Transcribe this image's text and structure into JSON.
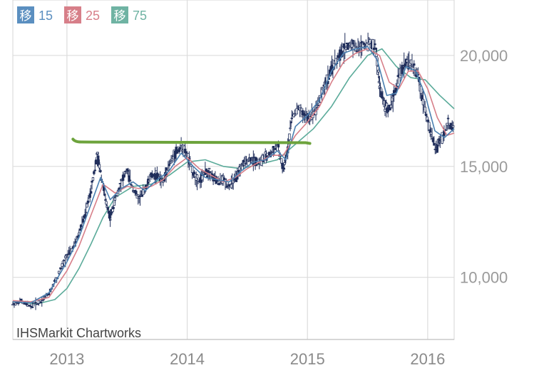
{
  "chart_data": {
    "type": "candlestick",
    "watermark": "IHSMarkit Chartworks",
    "x_ticks": [
      "2013",
      "2014",
      "2015",
      "2016"
    ],
    "y_ticks": [
      {
        "value": 10000,
        "label": "10,000"
      },
      {
        "value": 15000,
        "label": "15,000"
      },
      {
        "value": 20000,
        "label": "20,000"
      }
    ],
    "ylim": [
      7200,
      22500
    ],
    "xlim": [
      2012.55,
      2016.22
    ],
    "grid": true,
    "legend_position": "top-left",
    "moving_averages": [
      {
        "badge": "移",
        "period": "15",
        "color": "#4a7fb0",
        "badge_color": "#5b8fc0"
      },
      {
        "badge": "移",
        "period": "25",
        "color": "#d77f89",
        "badge_color": "#d77f89"
      },
      {
        "badge": "移",
        "period": "75",
        "color": "#5bab9a",
        "badge_color": "#6fb3a3"
      }
    ],
    "price_color": "#1f2d5a",
    "price": [
      [
        2012.55,
        8800
      ],
      [
        2012.62,
        8900
      ],
      [
        2012.7,
        8700
      ],
      [
        2012.78,
        8900
      ],
      [
        2012.85,
        9300
      ],
      [
        2012.92,
        10000
      ],
      [
        2013.0,
        11000
      ],
      [
        2013.05,
        11300
      ],
      [
        2013.1,
        12000
      ],
      [
        2013.15,
        12800
      ],
      [
        2013.2,
        14000
      ],
      [
        2013.25,
        15500
      ],
      [
        2013.28,
        14800
      ],
      [
        2013.32,
        13500
      ],
      [
        2013.36,
        12700
      ],
      [
        2013.4,
        13500
      ],
      [
        2013.45,
        14300
      ],
      [
        2013.5,
        14800
      ],
      [
        2013.55,
        14000
      ],
      [
        2013.6,
        13500
      ],
      [
        2013.65,
        14000
      ],
      [
        2013.7,
        14600
      ],
      [
        2013.75,
        14600
      ],
      [
        2013.8,
        14300
      ],
      [
        2013.85,
        15100
      ],
      [
        2013.9,
        15600
      ],
      [
        2013.95,
        15900
      ],
      [
        2014.0,
        15500
      ],
      [
        2014.05,
        14700
      ],
      [
        2014.1,
        14300
      ],
      [
        2014.15,
        14800
      ],
      [
        2014.2,
        14600
      ],
      [
        2014.25,
        14300
      ],
      [
        2014.3,
        14400
      ],
      [
        2014.35,
        14100
      ],
      [
        2014.4,
        14400
      ],
      [
        2014.45,
        15000
      ],
      [
        2014.5,
        15300
      ],
      [
        2014.55,
        15300
      ],
      [
        2014.6,
        15200
      ],
      [
        2014.65,
        15400
      ],
      [
        2014.7,
        15600
      ],
      [
        2014.75,
        16000
      ],
      [
        2014.8,
        14800
      ],
      [
        2014.83,
        15600
      ],
      [
        2014.87,
        17200
      ],
      [
        2014.92,
        17600
      ],
      [
        2014.97,
        17300
      ],
      [
        2015.02,
        17200
      ],
      [
        2015.07,
        17600
      ],
      [
        2015.12,
        18300
      ],
      [
        2015.17,
        19000
      ],
      [
        2015.22,
        19600
      ],
      [
        2015.27,
        20000
      ],
      [
        2015.32,
        20400
      ],
      [
        2015.37,
        20500
      ],
      [
        2015.42,
        20300
      ],
      [
        2015.47,
        20500
      ],
      [
        2015.52,
        20600
      ],
      [
        2015.57,
        20300
      ],
      [
        2015.6,
        18600
      ],
      [
        2015.64,
        17800
      ],
      [
        2015.67,
        17500
      ],
      [
        2015.72,
        18200
      ],
      [
        2015.77,
        19200
      ],
      [
        2015.82,
        19700
      ],
      [
        2015.87,
        19600
      ],
      [
        2015.92,
        19000
      ],
      [
        2015.97,
        17800
      ],
      [
        2016.02,
        16600
      ],
      [
        2016.07,
        15800
      ],
      [
        2016.12,
        16300
      ],
      [
        2016.17,
        16900
      ],
      [
        2016.22,
        16700
      ]
    ],
    "ma15": [
      [
        2012.55,
        8900
      ],
      [
        2012.7,
        8850
      ],
      [
        2012.85,
        9300
      ],
      [
        2013.0,
        10700
      ],
      [
        2013.1,
        11800
      ],
      [
        2013.2,
        13300
      ],
      [
        2013.28,
        14500
      ],
      [
        2013.36,
        13500
      ],
      [
        2013.45,
        14000
      ],
      [
        2013.55,
        14300
      ],
      [
        2013.65,
        13900
      ],
      [
        2013.75,
        14400
      ],
      [
        2013.85,
        14800
      ],
      [
        2013.95,
        15600
      ],
      [
        2014.05,
        15000
      ],
      [
        2014.15,
        14500
      ],
      [
        2014.25,
        14400
      ],
      [
        2014.35,
        14300
      ],
      [
        2014.45,
        14800
      ],
      [
        2014.55,
        15200
      ],
      [
        2014.65,
        15300
      ],
      [
        2014.75,
        15700
      ],
      [
        2014.82,
        15300
      ],
      [
        2014.9,
        16800
      ],
      [
        2015.0,
        17300
      ],
      [
        2015.1,
        18000
      ],
      [
        2015.2,
        19300
      ],
      [
        2015.3,
        20100
      ],
      [
        2015.4,
        20300
      ],
      [
        2015.5,
        20400
      ],
      [
        2015.58,
        19800
      ],
      [
        2015.66,
        18200
      ],
      [
        2015.74,
        18300
      ],
      [
        2015.82,
        19500
      ],
      [
        2015.9,
        19300
      ],
      [
        2015.98,
        18200
      ],
      [
        2016.06,
        16600
      ],
      [
        2016.14,
        16300
      ],
      [
        2016.22,
        16700
      ]
    ],
    "ma25": [
      [
        2012.55,
        8950
      ],
      [
        2012.7,
        8900
      ],
      [
        2012.85,
        9100
      ],
      [
        2013.0,
        10300
      ],
      [
        2013.1,
        11400
      ],
      [
        2013.2,
        12800
      ],
      [
        2013.3,
        14200
      ],
      [
        2013.4,
        13800
      ],
      [
        2013.5,
        14100
      ],
      [
        2013.6,
        14000
      ],
      [
        2013.7,
        14100
      ],
      [
        2013.8,
        14400
      ],
      [
        2013.9,
        15000
      ],
      [
        2014.0,
        15400
      ],
      [
        2014.1,
        14900
      ],
      [
        2014.2,
        14600
      ],
      [
        2014.3,
        14300
      ],
      [
        2014.4,
        14500
      ],
      [
        2014.5,
        14900
      ],
      [
        2014.6,
        15200
      ],
      [
        2014.7,
        15500
      ],
      [
        2014.8,
        15500
      ],
      [
        2014.9,
        16400
      ],
      [
        2015.0,
        17000
      ],
      [
        2015.1,
        17700
      ],
      [
        2015.2,
        18800
      ],
      [
        2015.3,
        19700
      ],
      [
        2015.4,
        20100
      ],
      [
        2015.5,
        20300
      ],
      [
        2015.6,
        20000
      ],
      [
        2015.68,
        18800
      ],
      [
        2015.76,
        18500
      ],
      [
        2015.84,
        19300
      ],
      [
        2015.92,
        19300
      ],
      [
        2016.0,
        18500
      ],
      [
        2016.08,
        17200
      ],
      [
        2016.16,
        16400
      ],
      [
        2016.22,
        16500
      ]
    ],
    "ma75": [
      [
        2012.55,
        8900
      ],
      [
        2012.75,
        8800
      ],
      [
        2012.9,
        9000
      ],
      [
        2013.0,
        9500
      ],
      [
        2013.1,
        10400
      ],
      [
        2013.2,
        11500
      ],
      [
        2013.3,
        12700
      ],
      [
        2013.4,
        13600
      ],
      [
        2013.55,
        14100
      ],
      [
        2013.7,
        14200
      ],
      [
        2013.85,
        14600
      ],
      [
        2014.0,
        15200
      ],
      [
        2014.15,
        15300
      ],
      [
        2014.3,
        15000
      ],
      [
        2014.45,
        14900
      ],
      [
        2014.6,
        15100
      ],
      [
        2014.75,
        15300
      ],
      [
        2014.9,
        16000
      ],
      [
        2015.05,
        16700
      ],
      [
        2015.2,
        17700
      ],
      [
        2015.35,
        19000
      ],
      [
        2015.5,
        20000
      ],
      [
        2015.62,
        20300
      ],
      [
        2015.74,
        19500
      ],
      [
        2015.86,
        19000
      ],
      [
        2015.98,
        18900
      ],
      [
        2016.1,
        18200
      ],
      [
        2016.22,
        17600
      ]
    ],
    "annotation_line": {
      "y": 16100,
      "x_start": 2013.05,
      "x_end": 2015.02,
      "color": "#6da33c"
    }
  }
}
